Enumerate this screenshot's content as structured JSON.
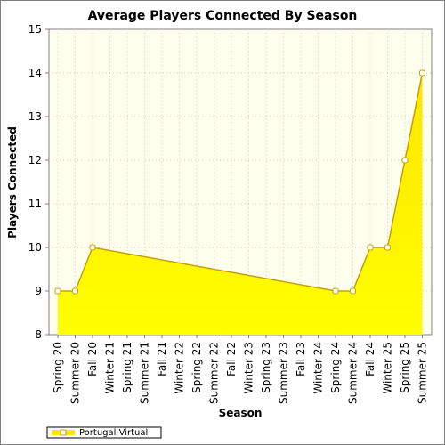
{
  "chart_data": {
    "type": "area",
    "title": "Average Players Connected By Season",
    "xlabel": "Season",
    "ylabel": "Players Connected",
    "ylim": [
      8,
      15
    ],
    "yticks": [
      "8",
      "9",
      "10",
      "11",
      "12",
      "13",
      "14",
      "15"
    ],
    "grid": true,
    "legend_position": "bottom-left",
    "categories": [
      "Spring 20",
      "Summer 20",
      "Fall 20",
      "Winter 21",
      "Spring 21",
      "Summer 21",
      "Fall 21",
      "Winter 22",
      "Spring 22",
      "Summer 22",
      "Fall 22",
      "Winter 23",
      "Spring 23",
      "Summer 23",
      "Fall 23",
      "Winter 24",
      "Spring 24",
      "Summer 24",
      "Fall 24",
      "Winter 25",
      "Spring 25",
      "Summer 25"
    ],
    "series": [
      {
        "name": "Portugal Virtual",
        "values": [
          9,
          9,
          10,
          null,
          null,
          null,
          null,
          null,
          null,
          null,
          null,
          null,
          null,
          null,
          null,
          null,
          9,
          9,
          10,
          10,
          12,
          14
        ],
        "color": "#ffe600"
      }
    ],
    "colors": {
      "plot_background": "#ffffee",
      "line": "#c8a000",
      "fill_top": "#ffe600",
      "fill_bottom": "#ffff00",
      "marker_fill": "#ffffff"
    }
  }
}
